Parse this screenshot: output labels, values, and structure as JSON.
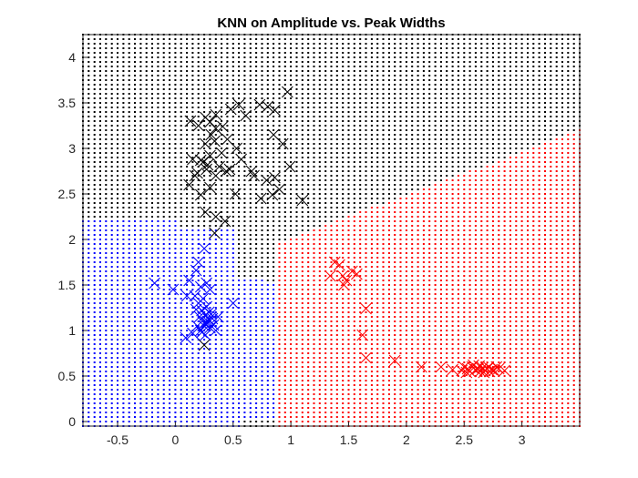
{
  "chart_data": {
    "type": "scatter",
    "title": "KNN on Amplitude vs. Peak Widths",
    "xlabel": "",
    "ylabel": "",
    "xlim": [
      -0.8,
      3.5
    ],
    "ylim": [
      -0.05,
      4.25
    ],
    "xticks": [
      -0.5,
      0,
      0.5,
      1,
      1.5,
      2,
      2.5,
      3
    ],
    "xtick_labels": [
      "-0.5",
      "0",
      "0.5",
      "1",
      "1.5",
      "2",
      "2.5",
      "3"
    ],
    "yticks": [
      0,
      0.5,
      1,
      1.5,
      2,
      2.5,
      3,
      3.5,
      4
    ],
    "ytick_labels": [
      "0",
      "0.5",
      "1",
      "1.5",
      "2",
      "2.5",
      "3",
      "3.5",
      "4"
    ],
    "grid": false,
    "legend": "none",
    "background_grid": {
      "marker": "dot",
      "x_range": [
        -0.8,
        3.5
      ],
      "y_range": [
        -0.05,
        4.25
      ],
      "step": 0.05,
      "regions": [
        {
          "class": "blue",
          "color": "#0000ff",
          "description": "x < 0.9 and y < 2.25 (except corners), and x < 1.0 with y < 1.45 near boundary"
        },
        {
          "class": "red",
          "color": "#ff0000",
          "description": "right region x > 0.85, below diagonal boundary rising from (0.85, 1.9) to (3.5, 3.2)"
        },
        {
          "class": "black",
          "color": "#000000",
          "description": "remaining upper region"
        }
      ]
    },
    "series": [
      {
        "class": "black",
        "color": "#000000",
        "marker": "x",
        "x": [
          0.13,
          0.2,
          0.26,
          0.3,
          0.35,
          0.41,
          0.48,
          0.55,
          0.61,
          0.73,
          0.8,
          0.86,
          0.97,
          0.31,
          0.35,
          0.15,
          0.22,
          0.3,
          0.4,
          0.26,
          0.34,
          0.45,
          0.53,
          0.85,
          0.93,
          0.24,
          0.28,
          0.38,
          0.47,
          0.57,
          0.68,
          0.79,
          0.86,
          0.12,
          0.19,
          0.27,
          0.35,
          0.44,
          0.52,
          0.66,
          0.74,
          0.84,
          0.9,
          0.17,
          0.3,
          0.43,
          0.26,
          0.34,
          1.1,
          0.22,
          0.35,
          0.99,
          0.25
        ],
        "y": [
          3.3,
          3.25,
          3.34,
          3.29,
          3.37,
          3.24,
          3.43,
          3.48,
          3.36,
          3.48,
          3.46,
          3.42,
          3.62,
          3.15,
          3.22,
          2.88,
          2.87,
          2.92,
          2.95,
          3.05,
          3.08,
          3.1,
          3.0,
          3.15,
          3.05,
          2.85,
          2.82,
          2.8,
          2.77,
          2.88,
          2.7,
          2.65,
          2.68,
          2.6,
          2.73,
          2.77,
          2.7,
          2.75,
          2.5,
          2.75,
          2.45,
          2.49,
          2.55,
          2.7,
          2.57,
          2.2,
          2.3,
          2.07,
          2.43,
          2.49,
          2.25,
          2.8,
          0.84
        ]
      },
      {
        "class": "blue",
        "color": "#0000ff",
        "marker": "x",
        "x": [
          0.25,
          0.2,
          0.18,
          0.27,
          0.22,
          0.12,
          0.3,
          0.17,
          0.24,
          0.2,
          0.27,
          0.23,
          0.29,
          0.26,
          0.21,
          0.32,
          0.28,
          0.25,
          0.19,
          0.3,
          0.35,
          0.23,
          0.26,
          0.15,
          0.09,
          -0.02,
          -0.18,
          0.5,
          0.37,
          0.1,
          0.25,
          0.29,
          0.31,
          0.22,
          0.27,
          0.18,
          0.33
        ],
        "y": [
          1.9,
          1.75,
          1.66,
          1.52,
          1.48,
          1.55,
          1.45,
          1.38,
          1.35,
          1.3,
          1.26,
          1.22,
          1.2,
          1.17,
          1.15,
          1.13,
          1.1,
          1.08,
          1.05,
          1.03,
          1.0,
          0.98,
          0.95,
          0.97,
          0.92,
          1.45,
          1.52,
          1.3,
          1.15,
          1.38,
          1.05,
          1.12,
          1.18,
          1.0,
          1.09,
          1.23,
          1.06
        ]
      },
      {
        "class": "red",
        "color": "#ff0000",
        "marker": "x",
        "x": [
          1.38,
          1.42,
          1.45,
          1.48,
          1.53,
          1.57,
          1.34,
          1.46,
          1.65,
          1.62,
          1.65,
          1.9,
          2.13,
          2.3,
          2.4,
          2.48,
          2.5,
          2.53,
          2.55,
          2.57,
          2.6,
          2.62,
          2.64,
          2.66,
          2.68,
          2.7,
          2.72,
          2.74,
          2.76,
          2.78,
          2.8,
          2.85,
          2.58,
          2.63,
          2.67,
          2.52,
          2.71
        ],
        "y": [
          1.75,
          1.72,
          1.6,
          1.55,
          1.65,
          1.62,
          1.6,
          1.5,
          1.24,
          0.95,
          0.7,
          0.67,
          0.6,
          0.6,
          0.57,
          0.56,
          0.6,
          0.58,
          0.55,
          0.6,
          0.57,
          0.58,
          0.55,
          0.59,
          0.56,
          0.58,
          0.55,
          0.57,
          0.56,
          0.6,
          0.58,
          0.56,
          0.62,
          0.61,
          0.54,
          0.54,
          0.6
        ]
      }
    ]
  }
}
